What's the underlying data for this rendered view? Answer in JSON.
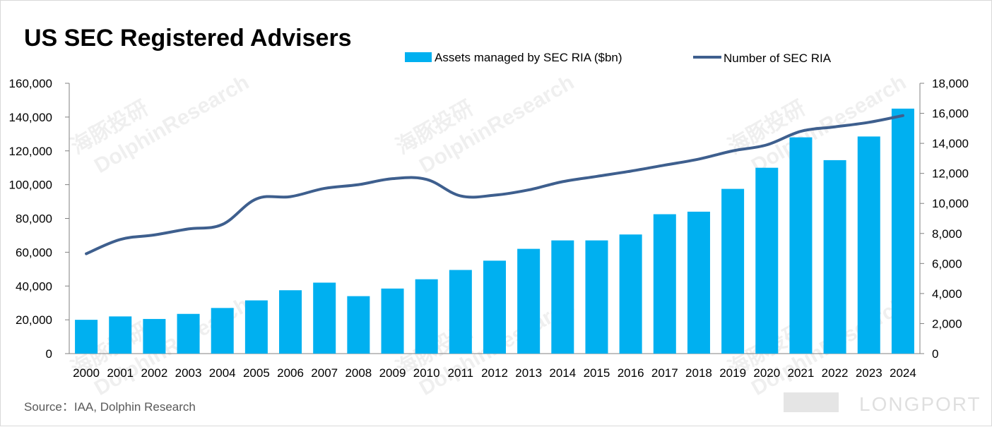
{
  "chart_data": {
    "type": "bar",
    "title": "US SEC Registered Advisers",
    "categories": [
      "2000",
      "2001",
      "2002",
      "2003",
      "2004",
      "2005",
      "2006",
      "2007",
      "2008",
      "2009",
      "2010",
      "2011",
      "2012",
      "2013",
      "2014",
      "2015",
      "2016",
      "2017",
      "2018",
      "2019",
      "2020",
      "2021",
      "2022",
      "2023",
      "2024"
    ],
    "series": [
      {
        "name": "Assets managed by SEC RIA  ($bn)",
        "type": "bar",
        "axis": "left",
        "color": "#00b0f0",
        "values": [
          20000,
          22000,
          20500,
          23500,
          27000,
          31500,
          37500,
          42000,
          34000,
          38500,
          44000,
          49500,
          55000,
          62000,
          67000,
          67000,
          70500,
          82500,
          84000,
          97500,
          110000,
          128000,
          114500,
          128500,
          145000
        ]
      },
      {
        "name": "Number of SEC RIA",
        "type": "line",
        "axis": "right",
        "color": "#3e5f8e",
        "values": [
          6650,
          7600,
          7900,
          8300,
          8600,
          10300,
          10450,
          11000,
          11250,
          11650,
          11600,
          10500,
          10550,
          10900,
          11450,
          11800,
          12150,
          12550,
          12950,
          13500,
          13900,
          14800,
          15100,
          15400,
          15850
        ]
      }
    ],
    "left_axis": {
      "min": 0,
      "max": 160000,
      "step": 20000,
      "tick_labels": [
        "0",
        "20,000",
        "40,000",
        "60,000",
        "80,000",
        "100,000",
        "120,000",
        "140,000",
        "160,000"
      ]
    },
    "right_axis": {
      "min": 0,
      "max": 18000,
      "step": 2000,
      "tick_labels": [
        "0",
        "2,000",
        "4,000",
        "6,000",
        "8,000",
        "10,000",
        "12,000",
        "14,000",
        "16,000",
        "18,000"
      ]
    },
    "legend_position": "top-right",
    "grid": false
  },
  "source": "Source：IAA, Dolphin Research",
  "watermark": {
    "brand": "DolphinResearch",
    "brand_cn": "海豚投研",
    "footer_logo": "LONGPORT"
  }
}
